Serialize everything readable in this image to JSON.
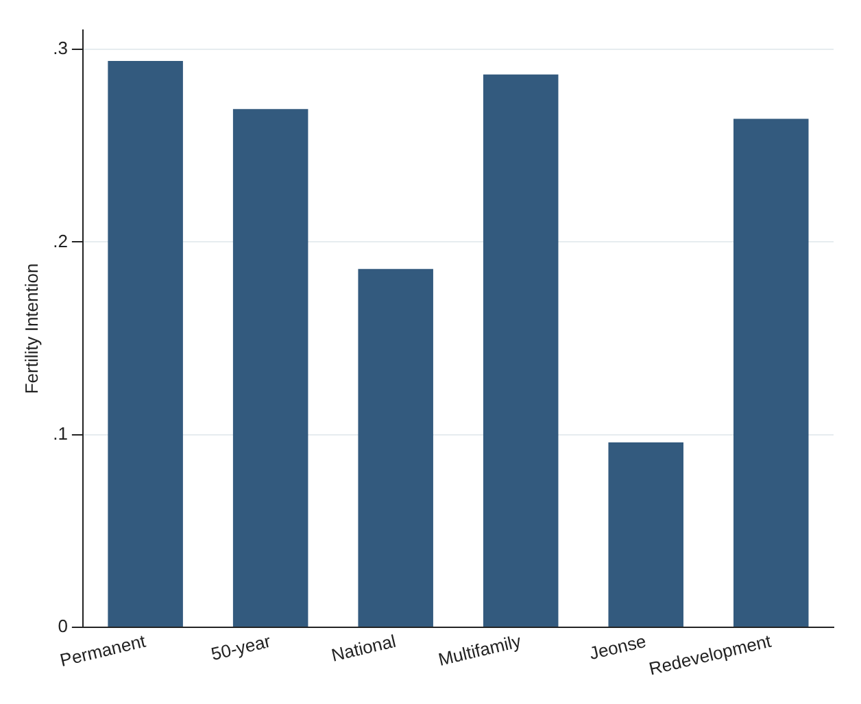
{
  "chart_data": {
    "type": "bar",
    "ylabel": "Fertility Intention",
    "categories": [
      "Permanent",
      "50-year",
      "National",
      "Multifamily",
      "Jeonse",
      "Redevelopment"
    ],
    "values": [
      0.294,
      0.269,
      0.186,
      0.287,
      0.096,
      0.264
    ],
    "color": "#335a7e",
    "ylim": [
      0,
      0.31
    ],
    "yticks": [
      0,
      {
        "value": 0.1,
        "label": ".1"
      },
      {
        "value": 0.2,
        "label": ".2"
      },
      {
        "value": 0.3,
        "label": ".3"
      }
    ],
    "grid": "y",
    "legend": false
  }
}
